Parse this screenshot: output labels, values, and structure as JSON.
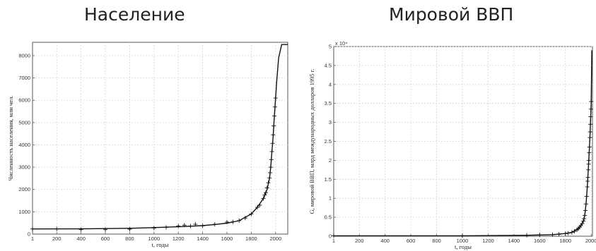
{
  "titles": {
    "left": "Население",
    "right": "Мировой ВВП"
  },
  "chart_data": [
    {
      "type": "line",
      "title": "Население",
      "xlabel": "t, годы",
      "ylabel": "Численность населения, млн чел.",
      "xlim": [
        1,
        2100
      ],
      "ylim": [
        0,
        8600
      ],
      "grid": true,
      "x_ticks": [
        1,
        200,
        400,
        600,
        800,
        1000,
        1200,
        1400,
        1600,
        1800,
        2000
      ],
      "y_ticks": [
        0,
        1000,
        2000,
        3000,
        4000,
        5000,
        6000,
        7000,
        8000
      ],
      "series": [
        {
          "style": "line",
          "x": [
            1,
            400,
            800,
            1000,
            1200,
            1400,
            1500,
            1600,
            1700,
            1800,
            1850,
            1900,
            1930,
            1950,
            1960,
            1970,
            1980,
            1990,
            2000,
            2010,
            2025,
            2050,
            2100
          ],
          "y": [
            230,
            235,
            260,
            290,
            330,
            380,
            430,
            490,
            600,
            900,
            1200,
            1600,
            2000,
            2500,
            3000,
            3700,
            4400,
            5300,
            6100,
            6900,
            7900,
            8500,
            8500
          ]
        },
        {
          "style": "markers",
          "x": [
            1,
            200,
            400,
            600,
            800,
            1000,
            1100,
            1200,
            1250,
            1300,
            1340,
            1400,
            1500,
            1600,
            1650,
            1700,
            1750,
            1800,
            1850,
            1870,
            1900,
            1910,
            1920,
            1930,
            1940,
            1950,
            1955,
            1960,
            1965,
            1970,
            1975,
            1980,
            1985,
            1990,
            1995,
            2000
          ],
          "y": [
            230,
            230,
            200,
            200,
            220,
            270,
            300,
            360,
            400,
            360,
            440,
            370,
            440,
            540,
            550,
            600,
            720,
            900,
            1200,
            1300,
            1600,
            1750,
            1860,
            2070,
            2300,
            2520,
            2750,
            3000,
            3340,
            3700,
            4070,
            4450,
            4850,
            5300,
            5700,
            6100
          ]
        }
      ]
    },
    {
      "type": "line",
      "title": "Мировой ВВП",
      "xlabel": "t, годы",
      "ylabel": "G, мировой ВВП, млрд международных долларов 1995 г.",
      "y_exponent": "x 10⁴",
      "xlim": [
        1,
        2010
      ],
      "ylim": [
        0,
        5
      ],
      "grid": true,
      "x_ticks": [
        1,
        200,
        400,
        600,
        800,
        1000,
        1200,
        1400,
        1600,
        1800,
        2000
      ],
      "y_ticks": [
        0,
        0.5,
        1,
        1.5,
        2,
        2.5,
        3,
        3.5,
        4,
        4.5,
        5
      ],
      "series": [
        {
          "style": "line",
          "x": [
            1,
            1000,
            1500,
            1700,
            1800,
            1850,
            1900,
            1920,
            1940,
            1950,
            1960,
            1970,
            1980,
            1990,
            2000,
            2005
          ],
          "y": [
            0.01,
            0.012,
            0.025,
            0.04,
            0.07,
            0.1,
            0.2,
            0.28,
            0.4,
            0.55,
            0.85,
            1.3,
            1.9,
            2.6,
            3.5,
            4.9
          ]
        },
        {
          "style": "markers",
          "x": [
            1,
            1000,
            1500,
            1600,
            1700,
            1750,
            1800,
            1820,
            1850,
            1870,
            1890,
            1900,
            1910,
            1920,
            1930,
            1940,
            1945,
            1950,
            1955,
            1960,
            1965,
            1970,
            1973,
            1975,
            1978,
            1980,
            1982,
            1985,
            1987,
            1990,
            1992,
            1994,
            1996,
            1998,
            2000
          ],
          "y": [
            0.01,
            0.012,
            0.025,
            0.032,
            0.04,
            0.05,
            0.07,
            0.08,
            0.1,
            0.13,
            0.17,
            0.2,
            0.24,
            0.28,
            0.33,
            0.4,
            0.46,
            0.55,
            0.68,
            0.85,
            1.05,
            1.3,
            1.45,
            1.55,
            1.75,
            1.9,
            2.0,
            2.2,
            2.35,
            2.6,
            2.75,
            2.95,
            3.15,
            3.35,
            3.55
          ]
        }
      ]
    }
  ]
}
